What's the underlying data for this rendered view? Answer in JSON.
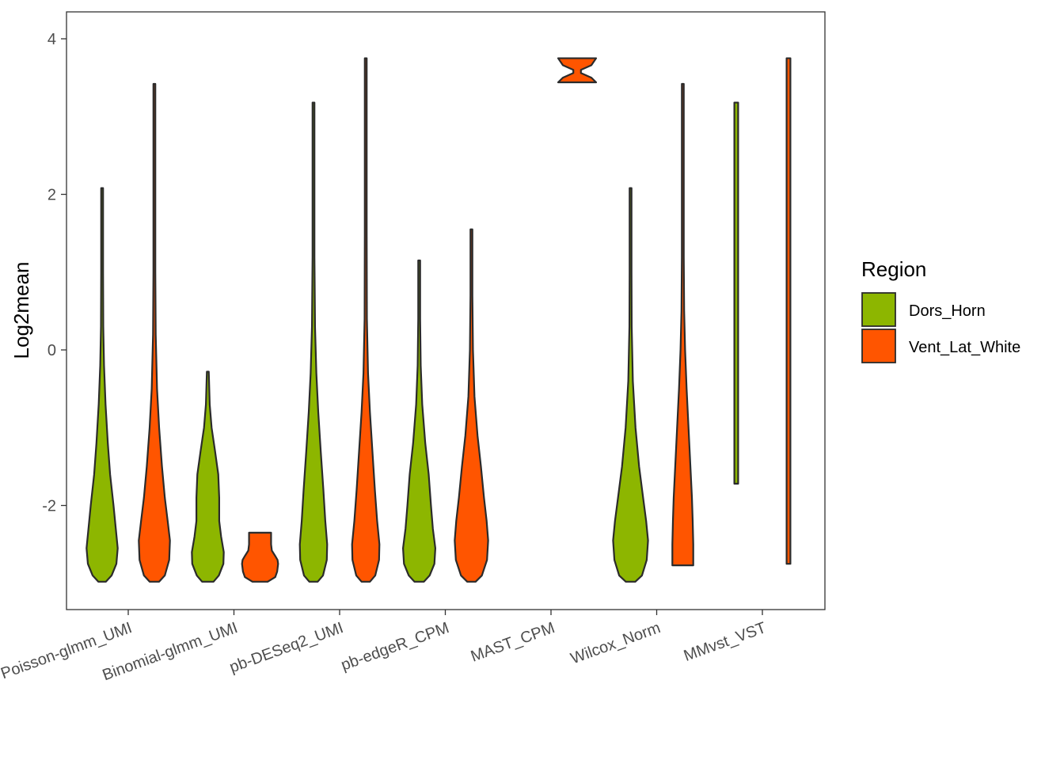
{
  "chart_data": {
    "type": "violin",
    "title": "",
    "xlabel": "",
    "ylabel": "Log2mean",
    "ylim": [
      -3.3,
      4.4
    ],
    "yticks": [
      4,
      2,
      0,
      -2
    ],
    "ytick_labels": [
      "4",
      "2",
      "0",
      "-2"
    ],
    "grid": false,
    "categories": [
      "Poisson-glmm_UMI",
      "Binomial-glmm_UMI",
      "pb-DESeq2_UMI",
      "pb-edgeR_CPM",
      "MAST_CPM",
      "Wilcox_Norm",
      "MMvst_VST"
    ],
    "legend": {
      "title": "Region",
      "placement": "right",
      "items": [
        {
          "label": "Dors_Horn",
          "color": "#8DB600"
        },
        {
          "label": "Vent_Lat_White",
          "color": "#FF5500"
        }
      ]
    },
    "series": [
      {
        "name": "Dors_Horn",
        "color": "#8DB600",
        "violins": [
          {
            "category": "Poisson-glmm_UMI",
            "min": -2.98,
            "max": 2.08,
            "profile": [
              [
                -2.98,
                0.2
              ],
              [
                -2.9,
                0.5
              ],
              [
                -2.75,
                0.75
              ],
              [
                -2.55,
                0.82
              ],
              [
                -2.3,
                0.72
              ],
              [
                -2.0,
                0.6
              ],
              [
                -1.6,
                0.42
              ],
              [
                -1.2,
                0.3
              ],
              [
                -0.7,
                0.18
              ],
              [
                -0.2,
                0.1
              ],
              [
                0.3,
                0.06
              ],
              [
                1.0,
                0.04
              ],
              [
                2.08,
                0.04
              ]
            ]
          },
          {
            "category": "Binomial-glmm_UMI",
            "min": -2.98,
            "max": -0.28,
            "profile": [
              [
                -2.98,
                0.3
              ],
              [
                -2.9,
                0.58
              ],
              [
                -2.75,
                0.82
              ],
              [
                -2.6,
                0.84
              ],
              [
                -2.4,
                0.7
              ],
              [
                -2.2,
                0.6
              ],
              [
                -1.9,
                0.6
              ],
              [
                -1.6,
                0.55
              ],
              [
                -1.3,
                0.38
              ],
              [
                -1.0,
                0.2
              ],
              [
                -0.7,
                0.1
              ],
              [
                -0.28,
                0.05
              ]
            ]
          },
          {
            "category": "pb-DESeq2_UMI",
            "min": -2.98,
            "max": 3.18,
            "profile": [
              [
                -2.98,
                0.22
              ],
              [
                -2.9,
                0.5
              ],
              [
                -2.7,
                0.7
              ],
              [
                -2.5,
                0.72
              ],
              [
                -2.2,
                0.62
              ],
              [
                -1.8,
                0.52
              ],
              [
                -1.3,
                0.38
              ],
              [
                -0.8,
                0.25
              ],
              [
                -0.3,
                0.15
              ],
              [
                0.3,
                0.08
              ],
              [
                1.2,
                0.05
              ],
              [
                3.18,
                0.04
              ]
            ]
          },
          {
            "category": "pb-edgeR_CPM",
            "min": -2.98,
            "max": 1.15,
            "profile": [
              [
                -2.98,
                0.25
              ],
              [
                -2.9,
                0.55
              ],
              [
                -2.75,
                0.8
              ],
              [
                -2.55,
                0.85
              ],
              [
                -2.3,
                0.72
              ],
              [
                -2.0,
                0.62
              ],
              [
                -1.6,
                0.5
              ],
              [
                -1.2,
                0.32
              ],
              [
                -0.7,
                0.16
              ],
              [
                -0.2,
                0.08
              ],
              [
                0.4,
                0.05
              ],
              [
                1.15,
                0.04
              ]
            ]
          },
          {
            "category": "Wilcox_Norm",
            "min": -2.98,
            "max": 2.08,
            "profile": [
              [
                -2.98,
                0.25
              ],
              [
                -2.9,
                0.6
              ],
              [
                -2.7,
                0.85
              ],
              [
                -2.45,
                0.92
              ],
              [
                -2.2,
                0.82
              ],
              [
                -1.9,
                0.66
              ],
              [
                -1.5,
                0.45
              ],
              [
                -1.0,
                0.26
              ],
              [
                -0.4,
                0.12
              ],
              [
                0.3,
                0.06
              ],
              [
                1.0,
                0.04
              ],
              [
                2.08,
                0.04
              ]
            ]
          },
          {
            "category": "MMvst_VST",
            "min": -1.72,
            "max": 3.18,
            "profile": [
              [
                -1.72,
                0.1
              ],
              [
                -1.5,
                0.1
              ],
              [
                0,
                0.1
              ],
              [
                2.0,
                0.1
              ],
              [
                3.0,
                0.1
              ],
              [
                3.18,
                0.1
              ]
            ]
          }
        ]
      },
      {
        "name": "Vent_Lat_White",
        "color": "#FF5500",
        "violins": [
          {
            "category": "Poisson-glmm_UMI",
            "min": -2.98,
            "max": 3.42,
            "profile": [
              [
                -2.98,
                0.25
              ],
              [
                -2.9,
                0.55
              ],
              [
                -2.7,
                0.78
              ],
              [
                -2.45,
                0.82
              ],
              [
                -2.2,
                0.7
              ],
              [
                -1.9,
                0.55
              ],
              [
                -1.5,
                0.4
              ],
              [
                -1.0,
                0.25
              ],
              [
                -0.5,
                0.14
              ],
              [
                0.2,
                0.07
              ],
              [
                1.0,
                0.04
              ],
              [
                3.42,
                0.04
              ]
            ]
          },
          {
            "category": "Binomial-glmm_UMI",
            "min": -2.98,
            "max": -2.35,
            "profile": [
              [
                -2.98,
                0.4
              ],
              [
                -2.92,
                0.8
              ],
              [
                -2.85,
                0.9
              ],
              [
                -2.75,
                0.95
              ],
              [
                -2.7,
                0.92
              ],
              [
                -2.65,
                0.8
              ],
              [
                -2.58,
                0.62
              ],
              [
                -2.5,
                0.58
              ],
              [
                -2.42,
                0.58
              ],
              [
                -2.35,
                0.58
              ]
            ]
          },
          {
            "category": "pb-DESeq2_UMI",
            "min": -2.98,
            "max": 3.75,
            "profile": [
              [
                -2.98,
                0.22
              ],
              [
                -2.9,
                0.5
              ],
              [
                -2.7,
                0.7
              ],
              [
                -2.5,
                0.72
              ],
              [
                -2.2,
                0.6
              ],
              [
                -1.8,
                0.48
              ],
              [
                -1.3,
                0.35
              ],
              [
                -0.8,
                0.22
              ],
              [
                -0.3,
                0.12
              ],
              [
                0.4,
                0.06
              ],
              [
                1.5,
                0.04
              ],
              [
                3.75,
                0.04
              ]
            ]
          },
          {
            "category": "pb-edgeR_CPM",
            "min": -2.98,
            "max": 1.55,
            "profile": [
              [
                -2.98,
                0.22
              ],
              [
                -2.9,
                0.55
              ],
              [
                -2.7,
                0.82
              ],
              [
                -2.45,
                0.88
              ],
              [
                -2.2,
                0.8
              ],
              [
                -1.9,
                0.66
              ],
              [
                -1.5,
                0.5
              ],
              [
                -1.1,
                0.32
              ],
              [
                -0.6,
                0.16
              ],
              [
                0,
                0.08
              ],
              [
                0.7,
                0.05
              ],
              [
                1.55,
                0.04
              ]
            ]
          },
          {
            "category": "MAST_CPM",
            "min": 3.44,
            "max": 3.75,
            "profile": [
              [
                3.44,
                1.0
              ],
              [
                3.5,
                0.75
              ],
              [
                3.56,
                0.2
              ],
              [
                3.6,
                0.2
              ],
              [
                3.66,
                0.75
              ],
              [
                3.75,
                1.0
              ]
            ]
          },
          {
            "category": "Wilcox_Norm",
            "min": -2.77,
            "max": 3.42,
            "profile": [
              [
                -2.77,
                0.55
              ],
              [
                -2.5,
                0.55
              ],
              [
                -2.2,
                0.52
              ],
              [
                -1.9,
                0.48
              ],
              [
                -1.5,
                0.4
              ],
              [
                -1.0,
                0.3
              ],
              [
                -0.5,
                0.2
              ],
              [
                0,
                0.12
              ],
              [
                0.5,
                0.07
              ],
              [
                1.2,
                0.05
              ],
              [
                3.42,
                0.04
              ]
            ]
          },
          {
            "category": "MMvst_VST",
            "min": -2.75,
            "max": 3.75,
            "profile": [
              [
                -2.75,
                0.1
              ],
              [
                -1.0,
                0.1
              ],
              [
                0,
                0.1
              ],
              [
                2.0,
                0.1
              ],
              [
                3.75,
                0.1
              ]
            ]
          }
        ]
      }
    ]
  }
}
